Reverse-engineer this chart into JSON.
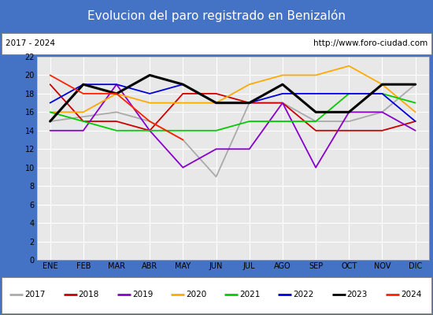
{
  "title": "Evolucion del paro registrado en Benizalón",
  "subtitle_left": "2017 - 2024",
  "subtitle_right": "http://www.foro-ciudad.com",
  "months": [
    "ENE",
    "FEB",
    "MAR",
    "ABR",
    "MAY",
    "JUN",
    "JUL",
    "AGO",
    "SEP",
    "OCT",
    "NOV",
    "DIC"
  ],
  "ylim": [
    0,
    22
  ],
  "yticks": [
    0,
    2,
    4,
    6,
    8,
    10,
    12,
    14,
    16,
    18,
    20,
    22
  ],
  "series": {
    "2017": {
      "color": "#aaaaaa",
      "values": [
        15,
        15.5,
        16,
        15,
        13,
        9,
        17,
        17,
        15,
        15,
        16,
        19
      ]
    },
    "2018": {
      "color": "#cc0000",
      "values": [
        19,
        15,
        15,
        14,
        18,
        18,
        17,
        17,
        14,
        14,
        14,
        15
      ]
    },
    "2019": {
      "color": "#8800cc",
      "values": [
        14,
        14,
        19,
        14,
        10,
        12,
        12,
        17,
        10,
        16,
        16,
        14
      ]
    },
    "2020": {
      "color": "#ffaa00",
      "values": [
        16,
        16,
        18,
        17,
        17,
        17,
        19,
        20,
        20,
        21,
        19,
        16
      ]
    },
    "2021": {
      "color": "#00cc00",
      "values": [
        16,
        15,
        14,
        14,
        14,
        14,
        15,
        15,
        15,
        18,
        18,
        17
      ]
    },
    "2022": {
      "color": "#0000dd",
      "values": [
        17,
        19,
        19,
        18,
        19,
        17,
        17,
        18,
        18,
        18,
        18,
        15
      ]
    },
    "2023": {
      "color": "#000000",
      "values": [
        15,
        19,
        18,
        20,
        19,
        17,
        17,
        19,
        16,
        16,
        19,
        19
      ]
    },
    "2024": {
      "color": "#ff2200",
      "values": [
        20,
        18,
        18,
        15,
        13,
        null,
        null,
        null,
        null,
        null,
        null,
        null
      ]
    }
  },
  "title_bg": "#4472c4",
  "title_color": "#ffffff",
  "plot_bg": "#e8e8e8",
  "grid_color": "#ffffff",
  "border_color": "#4472c4",
  "legend_years": [
    "2017",
    "2018",
    "2019",
    "2020",
    "2021",
    "2022",
    "2023",
    "2024"
  ],
  "title_fontsize": 11,
  "tick_fontsize": 7,
  "legend_fontsize": 7.5
}
